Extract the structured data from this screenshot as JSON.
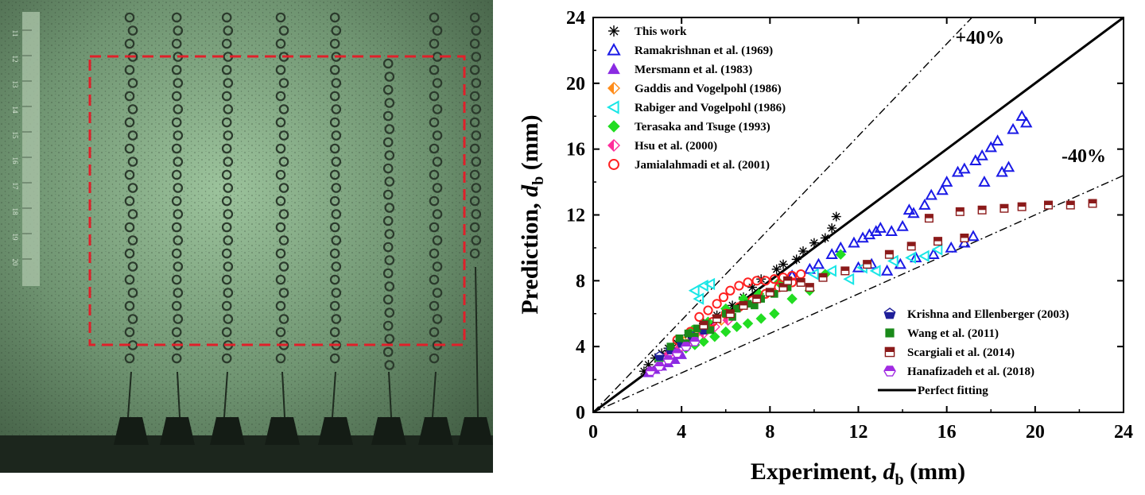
{
  "photo": {
    "description_free": true,
    "ruler_numbers": [
      "11",
      "12",
      "13",
      "14",
      "15",
      "16",
      "17",
      "18",
      "19",
      "20"
    ],
    "bubble_column_count": 8,
    "colors": {
      "background": "#5d7b5f",
      "highlight": "#9cc39c",
      "box": "#e0202a",
      "bubble": "#2b3a2c"
    }
  },
  "chart_data": {
    "type": "scatter",
    "xlabel_main": "Experiment, ",
    "xlabel_var": "d",
    "xlabel_sub": "b",
    "xlabel_unit": " (mm)",
    "ylabel_main": "Prediction, ",
    "ylabel_var": "d",
    "ylabel_sub": "b",
    "ylabel_unit": " (mm)",
    "xlim": [
      0,
      24
    ],
    "ylim": [
      0,
      24
    ],
    "xticks": [
      0,
      4,
      8,
      12,
      16,
      20,
      24
    ],
    "yticks": [
      0,
      4,
      8,
      12,
      16,
      20,
      24
    ],
    "annotations": [
      {
        "text": "+40%",
        "x": 17.5,
        "y": 22.4
      },
      {
        "text": "-40%",
        "x": 22.2,
        "y": 15.2
      }
    ],
    "reference_lines": [
      {
        "name": "Perfect fitting",
        "slope": 1.0,
        "style": "solid"
      },
      {
        "name": "+40%",
        "slope": 1.4,
        "style": "dashdot"
      },
      {
        "name": "-40%",
        "slope": 0.6,
        "style": "dashdot"
      }
    ],
    "legend_top": [
      "This work",
      "Ramakrishnan et al. (1969)",
      "Mersmann et al. (1983)",
      "Gaddis and Vogelpohl (1986)",
      "Rabiger and Vogelpohl (1986)",
      "Terasaka and Tsuge (1993)",
      "Hsu et al. (2000)",
      "Jamialahmadi et al. (2001)"
    ],
    "legend_bottom": [
      "Krishna and Ellenberger (2003)",
      "Wang et al. (2011)",
      "Scargiali et al. (2014)",
      "Hanafizadeh et al. (2018)",
      "Perfect fitting"
    ],
    "series": [
      {
        "name": "This work",
        "marker": "asterisk",
        "color": "#000000",
        "points": [
          [
            2.3,
            2.5
          ],
          [
            2.5,
            2.9
          ],
          [
            2.8,
            3.3
          ],
          [
            3.1,
            3.6
          ],
          [
            3.4,
            3.9
          ],
          [
            3.8,
            4.2
          ],
          [
            4.3,
            4.7
          ],
          [
            5.0,
            5.4
          ],
          [
            5.6,
            5.9
          ],
          [
            6.3,
            6.5
          ],
          [
            6.8,
            7.0
          ],
          [
            7.2,
            7.6
          ],
          [
            7.6,
            8.1
          ],
          [
            8.3,
            8.7
          ],
          [
            8.6,
            9.0
          ],
          [
            9.2,
            9.3
          ],
          [
            9.5,
            9.8
          ],
          [
            10.0,
            10.3
          ],
          [
            10.5,
            10.6
          ],
          [
            10.8,
            11.2
          ],
          [
            11.0,
            11.9
          ]
        ]
      },
      {
        "name": "Ramakrishnan et al. (1969)",
        "marker": "triangle",
        "color": "#1a1ae6",
        "points": [
          [
            9.0,
            8.3
          ],
          [
            9.8,
            8.7
          ],
          [
            10.2,
            9.0
          ],
          [
            10.8,
            9.6
          ],
          [
            11.2,
            10.0
          ],
          [
            11.8,
            10.3
          ],
          [
            12.2,
            10.6
          ],
          [
            12.5,
            10.8
          ],
          [
            12.8,
            11.0
          ],
          [
            13.0,
            11.2
          ],
          [
            13.5,
            11.0
          ],
          [
            14.0,
            11.3
          ],
          [
            14.3,
            12.3
          ],
          [
            14.5,
            12.1
          ],
          [
            15.0,
            12.6
          ],
          [
            15.3,
            13.2
          ],
          [
            15.8,
            13.5
          ],
          [
            16.0,
            14.0
          ],
          [
            16.5,
            14.6
          ],
          [
            16.8,
            14.8
          ],
          [
            17.3,
            15.3
          ],
          [
            17.6,
            15.6
          ],
          [
            17.7,
            14.0
          ],
          [
            18.0,
            16.1
          ],
          [
            18.3,
            16.5
          ],
          [
            18.5,
            14.6
          ],
          [
            18.8,
            14.9
          ],
          [
            19.0,
            17.2
          ],
          [
            19.4,
            18.0
          ],
          [
            19.6,
            17.6
          ],
          [
            13.3,
            8.6
          ],
          [
            13.9,
            9.0
          ],
          [
            14.6,
            9.4
          ],
          [
            15.4,
            9.6
          ],
          [
            16.2,
            10.0
          ],
          [
            16.8,
            10.3
          ],
          [
            17.2,
            10.7
          ],
          [
            12.0,
            8.8
          ],
          [
            12.6,
            9.0
          ]
        ]
      },
      {
        "name": "Mersmann et al. (1983)",
        "marker": "triangle-filled",
        "color": "#8a2be2",
        "points": [
          [
            2.5,
            2.4
          ],
          [
            2.8,
            2.6
          ],
          [
            3.1,
            2.8
          ],
          [
            3.4,
            3.0
          ],
          [
            3.7,
            3.2
          ],
          [
            4.0,
            3.5
          ]
        ]
      },
      {
        "name": "Gaddis and Vogelpohl (1986)",
        "marker": "diamond-half",
        "color": "#ff8c1a",
        "points": [
          [
            3.6,
            3.8
          ],
          [
            4.1,
            4.3
          ],
          [
            4.6,
            4.7
          ],
          [
            5.2,
            5.1
          ],
          [
            5.8,
            5.6
          ]
        ]
      },
      {
        "name": "Rabiger and Vogelpohl (1986)",
        "marker": "tri-left",
        "color": "#19e6e6",
        "points": [
          [
            4.6,
            7.4
          ],
          [
            5.0,
            7.7
          ],
          [
            5.3,
            7.8
          ],
          [
            4.8,
            6.9
          ],
          [
            10.0,
            8.4
          ],
          [
            10.8,
            8.6
          ],
          [
            11.6,
            8.1
          ],
          [
            12.8,
            8.6
          ],
          [
            13.6,
            9.2
          ],
          [
            14.4,
            9.4
          ],
          [
            15.0,
            9.5
          ],
          [
            15.6,
            9.9
          ],
          [
            12.2,
            8.8
          ]
        ]
      },
      {
        "name": "Terasaka and Tsuge (1993)",
        "marker": "diamond",
        "color": "#22dd22",
        "points": [
          [
            3.0,
            3.2
          ],
          [
            3.4,
            3.5
          ],
          [
            3.8,
            3.7
          ],
          [
            4.2,
            3.9
          ],
          [
            4.6,
            4.1
          ],
          [
            5.0,
            4.3
          ],
          [
            5.5,
            4.6
          ],
          [
            6.0,
            4.9
          ],
          [
            6.5,
            5.2
          ],
          [
            7.0,
            5.4
          ],
          [
            7.6,
            5.7
          ],
          [
            8.2,
            6.0
          ],
          [
            9.0,
            6.9
          ],
          [
            9.8,
            7.4
          ],
          [
            10.5,
            8.4
          ],
          [
            11.2,
            9.6
          ],
          [
            4.5,
            5.0
          ],
          [
            5.2,
            5.5
          ],
          [
            6.0,
            6.3
          ],
          [
            6.8,
            6.9
          ],
          [
            7.5,
            7.2
          ],
          [
            8.4,
            7.9
          ]
        ]
      },
      {
        "name": "Hsu et al. (2000)",
        "marker": "diamond-half",
        "color": "#ff2d9b",
        "points": [
          [
            3.4,
            3.5
          ],
          [
            3.9,
            3.9
          ],
          [
            4.4,
            4.3
          ],
          [
            5.0,
            4.8
          ],
          [
            5.5,
            5.2
          ],
          [
            6.1,
            5.6
          ]
        ]
      },
      {
        "name": "Jamialahmadi et al. (2001)",
        "marker": "circle-open",
        "color": "#ff2020",
        "points": [
          [
            4.8,
            5.8
          ],
          [
            5.2,
            6.2
          ],
          [
            5.6,
            6.6
          ],
          [
            5.9,
            7.0
          ],
          [
            6.2,
            7.4
          ],
          [
            6.6,
            7.7
          ],
          [
            7.0,
            7.9
          ],
          [
            7.4,
            8.0
          ],
          [
            7.8,
            8.0
          ],
          [
            8.2,
            8.1
          ],
          [
            8.6,
            8.2
          ],
          [
            9.0,
            8.3
          ],
          [
            9.4,
            8.4
          ],
          [
            6.0,
            6.0
          ],
          [
            6.6,
            6.4
          ],
          [
            7.2,
            6.8
          ],
          [
            7.8,
            7.2
          ],
          [
            8.4,
            7.6
          ],
          [
            9.0,
            7.9
          ],
          [
            5.4,
            5.5
          ],
          [
            4.4,
            4.9
          ],
          [
            3.8,
            4.4
          ]
        ]
      },
      {
        "name": "Krishna and Ellenberger (2003)",
        "marker": "pentagon",
        "color": "#1f1f99",
        "points": [
          [
            3.0,
            3.4
          ],
          [
            3.5,
            3.8
          ],
          [
            4.0,
            4.2
          ],
          [
            4.5,
            4.6
          ],
          [
            5.0,
            5.0
          ]
        ]
      },
      {
        "name": "Wang et al. (2011)",
        "marker": "square",
        "color": "#1a8a1a",
        "points": [
          [
            3.5,
            4.0
          ],
          [
            3.9,
            4.5
          ],
          [
            4.3,
            4.8
          ],
          [
            4.7,
            5.1
          ],
          [
            5.1,
            5.4
          ],
          [
            5.6,
            5.7
          ],
          [
            6.0,
            6.0
          ],
          [
            6.5,
            6.3
          ],
          [
            7.0,
            6.6
          ],
          [
            7.6,
            6.9
          ],
          [
            8.2,
            7.2
          ],
          [
            8.8,
            7.6
          ],
          [
            4.2,
            4.2
          ],
          [
            4.6,
            4.6
          ],
          [
            5.3,
            5.0
          ],
          [
            6.3,
            5.8
          ],
          [
            7.3,
            6.5
          ]
        ]
      },
      {
        "name": "Scargiali et al. (2014)",
        "marker": "square-half",
        "color": "#8b1a1a",
        "points": [
          [
            5.0,
            5.3
          ],
          [
            5.6,
            5.7
          ],
          [
            6.2,
            6.0
          ],
          [
            6.8,
            6.5
          ],
          [
            7.4,
            6.9
          ],
          [
            8.0,
            7.3
          ],
          [
            8.6,
            7.6
          ],
          [
            9.4,
            7.9
          ],
          [
            10.4,
            8.2
          ],
          [
            11.4,
            8.6
          ],
          [
            12.4,
            9.0
          ],
          [
            13.4,
            9.6
          ],
          [
            14.4,
            10.1
          ],
          [
            15.6,
            10.4
          ],
          [
            16.8,
            10.6
          ],
          [
            15.2,
            11.8
          ],
          [
            16.6,
            12.2
          ],
          [
            17.6,
            12.3
          ],
          [
            18.6,
            12.4
          ],
          [
            19.4,
            12.5
          ],
          [
            20.6,
            12.6
          ],
          [
            21.6,
            12.6
          ],
          [
            22.6,
            12.7
          ],
          [
            8.8,
            8.0
          ],
          [
            9.8,
            7.6
          ]
        ]
      },
      {
        "name": "Hanafizadeh et al. (2018)",
        "marker": "hexagon-half",
        "color": "#a12be2",
        "points": [
          [
            2.6,
            2.5
          ],
          [
            3.0,
            2.8
          ],
          [
            3.4,
            3.2
          ],
          [
            3.8,
            3.6
          ],
          [
            4.2,
            4.0
          ],
          [
            4.6,
            4.3
          ]
        ]
      }
    ]
  }
}
